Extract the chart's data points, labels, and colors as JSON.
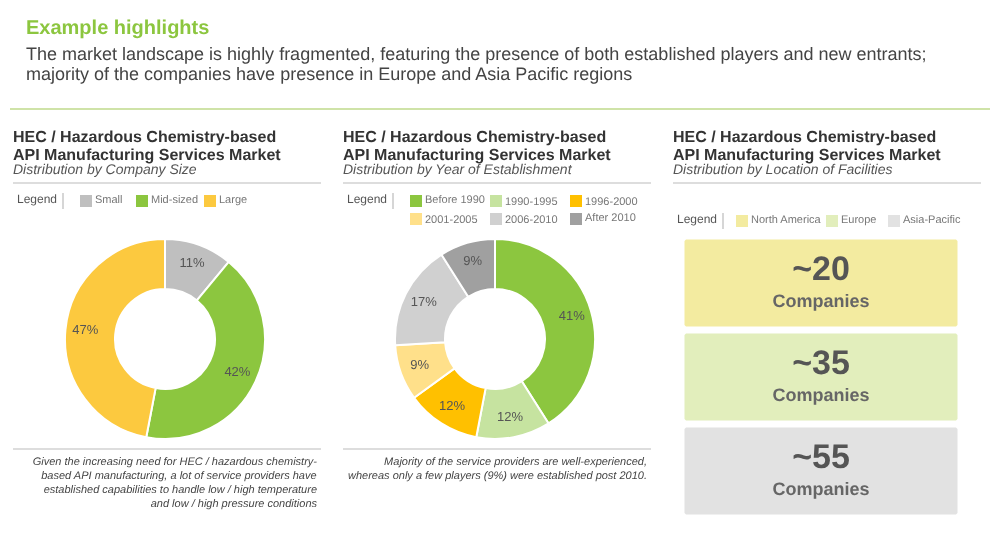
{
  "chart_data": [
    {
      "type": "donut",
      "title": "HEC / Hazardous Chemistry-based API Manufacturing Services Market",
      "subtitle": "Distribution by Company Size",
      "legend_title": "Legend",
      "legend": "top",
      "categories": [
        "Small",
        "Mid-sized",
        "Large"
      ],
      "values": [
        11,
        42,
        47
      ],
      "colors": [
        "#bfbfbf",
        "#8cc63f",
        "#fcc93f"
      ],
      "value_labels": [
        "11%",
        "42%",
        "47%"
      ],
      "annotations": [
        "Example highlights",
        "The market landscape is highly fragmented, featuring the presence of both established players and new entrants; majority of the companies have presence in Europe and Asia Pacific regions",
        "Given the increasing need for HEC / hazardous chemistry-based API manufacturing, a lot of service providers have established capabilities to handle low / high temperature and low / high pressure conditions"
      ]
    },
    {
      "type": "donut",
      "title": "HEC / Hazardous Chemistry-based API Manufacturing Services Market",
      "subtitle": "Distribution by Year of Establishment",
      "legend_title": "Legend",
      "legend": "top",
      "categories": [
        "Before 1990",
        "1990-1995",
        "1996-2000",
        "2001-2005",
        "2006-2010",
        "After 2010"
      ],
      "values": [
        41,
        12,
        12,
        9,
        17,
        9
      ],
      "colors": [
        "#8cc63f",
        "#c6e3a0",
        "#ffc000",
        "#ffe08a",
        "#d0d0d0",
        "#a0a0a0"
      ],
      "value_labels": [
        "41%",
        "12%",
        "12%",
        "9%",
        "17%",
        "9%"
      ],
      "annotations": [
        "Majority of the service providers are well-experienced, whereas only a few players (9%) were established post 2010."
      ]
    },
    {
      "type": "other",
      "title": "HEC / Hazardous Chemistry-based API Manufacturing Services Market",
      "subtitle": "Distribution by Location of Facilities",
      "legend_title": "Legend",
      "categories": [
        "North America",
        "Europe",
        "Asia-Pacific"
      ],
      "colors": [
        "#f3eba0",
        "#e2eebc",
        "#e2e2e2"
      ],
      "annotations": [
        "~20 Companies",
        "~35 Companies",
        "~55 Companies"
      ]
    }
  ]
}
